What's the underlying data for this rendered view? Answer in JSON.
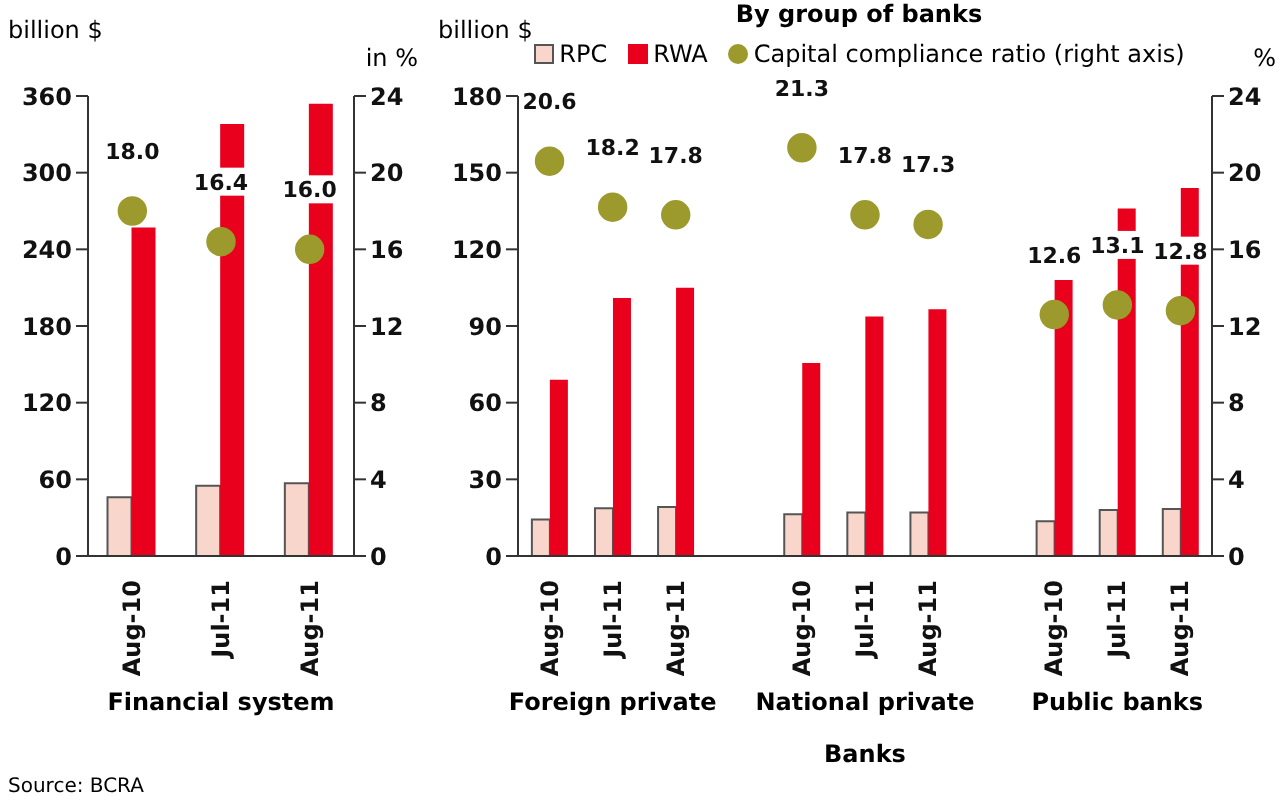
{
  "chart_data": [
    {
      "type": "bar",
      "xlabel": "Financial system",
      "ylabel": "billion $",
      "y2label": "in %",
      "categories": [
        "Aug-10",
        "Jul-11",
        "Aug-11"
      ],
      "series": [
        {
          "color": "#f9d6cb",
          "values": [
            46,
            55,
            57
          ]
        },
        {
          "color": "#e8001c",
          "values": [
            257,
            338,
            354
          ]
        },
        {
          "type": "scatter",
          "axis": "y2",
          "color": "#9c9a2c",
          "values": [
            18.0,
            16.4,
            16.0
          ],
          "value_labels": [
            "18.0",
            "16.4",
            "16.0"
          ]
        }
      ],
      "ylim": [
        0,
        360
      ],
      "yticks": [
        0,
        60,
        120,
        180,
        240,
        300,
        360
      ],
      "y2lim": [
        0,
        24
      ],
      "y2ticks": [
        0,
        4,
        8,
        12,
        16,
        20,
        24
      ],
      "grid": false,
      "legend": false,
      "marker": "circle",
      "annotations": [
        "Source: BCRA"
      ]
    },
    {
      "type": "bar",
      "title": "By group of banks",
      "xlabel": "Banks",
      "ylabel": "billion $",
      "y2label": "%",
      "categories": [
        "Aug-10",
        "Jul-11",
        "Aug-11",
        null,
        "Aug-10",
        "Jul-11",
        "Aug-11",
        null,
        "Aug-10",
        "Jul-11",
        "Aug-11"
      ],
      "series": [
        {
          "name": "RPC",
          "color": "#f9d6cb",
          "values": [
            14.3,
            18.7,
            19.2,
            null,
            16.3,
            17,
            17,
            null,
            13.6,
            18,
            18.4
          ]
        },
        {
          "name": "RWA",
          "color": "#e8001c",
          "values": [
            69,
            101,
            105,
            null,
            75.5,
            93.7,
            96.6,
            null,
            108,
            136,
            144
          ]
        },
        {
          "type": "scatter",
          "name": "Capital compliance ratio (right axis)",
          "axis": "y2",
          "color": "#9c9a2c",
          "values": [
            20.6,
            18.2,
            17.8,
            null,
            21.3,
            17.8,
            17.3,
            null,
            12.6,
            13.1,
            12.8
          ],
          "value_labels": [
            "20.6",
            "18.2",
            "17.8",
            null,
            "21.3",
            "17.8",
            "17.3",
            null,
            "12.6",
            "13.1",
            "12.8"
          ]
        }
      ],
      "ylim": [
        0,
        180
      ],
      "yticks": [
        0,
        30,
        60,
        90,
        120,
        150,
        180
      ],
      "y2lim": [
        0,
        24
      ],
      "y2ticks": [
        0,
        4,
        8,
        12,
        16,
        20,
        24
      ],
      "grid": false,
      "legend": "top",
      "marker": "circle",
      "annotations": [
        "Foreign private",
        "National private",
        "Public banks"
      ]
    }
  ]
}
